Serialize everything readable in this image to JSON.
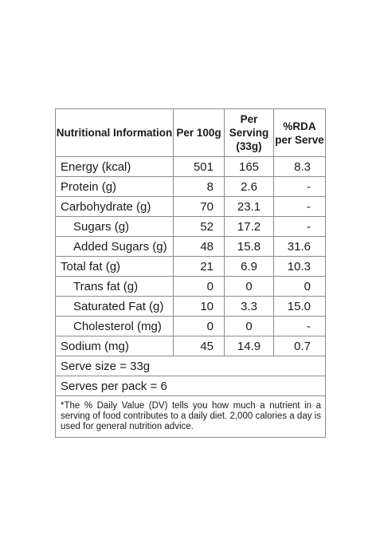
{
  "header": {
    "col1": "Nutritional Information",
    "col2": "Per 100g",
    "col3": "Per Serving (33g)",
    "col4": "%RDA per Serve"
  },
  "rows": [
    {
      "name": "Energy (kcal)",
      "per100": "501",
      "serving": "165",
      "rda": "8.3",
      "sub": false
    },
    {
      "name": "Protein (g)",
      "per100": "8",
      "serving": "2.6",
      "rda": "-",
      "sub": false
    },
    {
      "name": "Carbohydrate (g)",
      "per100": "70",
      "serving": "23.1",
      "rda": "-",
      "sub": false
    },
    {
      "name": "Sugars (g)",
      "per100": "52",
      "serving": "17.2",
      "rda": "-",
      "sub": true
    },
    {
      "name": "Added Sugars (g)",
      "per100": "48",
      "serving": "15.8",
      "rda": "31.6",
      "sub": true
    },
    {
      "name": "Total fat (g)",
      "per100": "21",
      "serving": "6.9",
      "rda": "10.3",
      "sub": false
    },
    {
      "name": "Trans fat (g)",
      "per100": "0",
      "serving": "0",
      "rda": "0",
      "sub": true
    },
    {
      "name": "Saturated Fat (g)",
      "per100": "10",
      "serving": "3.3",
      "rda": "15.0",
      "sub": true
    },
    {
      "name": "Cholesterol (mg)",
      "per100": "0",
      "serving": "0",
      "rda": "-",
      "sub": true
    },
    {
      "name": "Sodium (mg)",
      "per100": "45",
      "serving": "14.9",
      "rda": "0.7",
      "sub": false
    }
  ],
  "serve_size": "Serve size = 33g",
  "serves_per_pack": "Serves per pack = 6",
  "footnote": "*The % Daily Value (DV) tells you how much a nutrient in a serving of food contributes to a daily diet. 2,000 calories a day is used for general nutrition advice."
}
